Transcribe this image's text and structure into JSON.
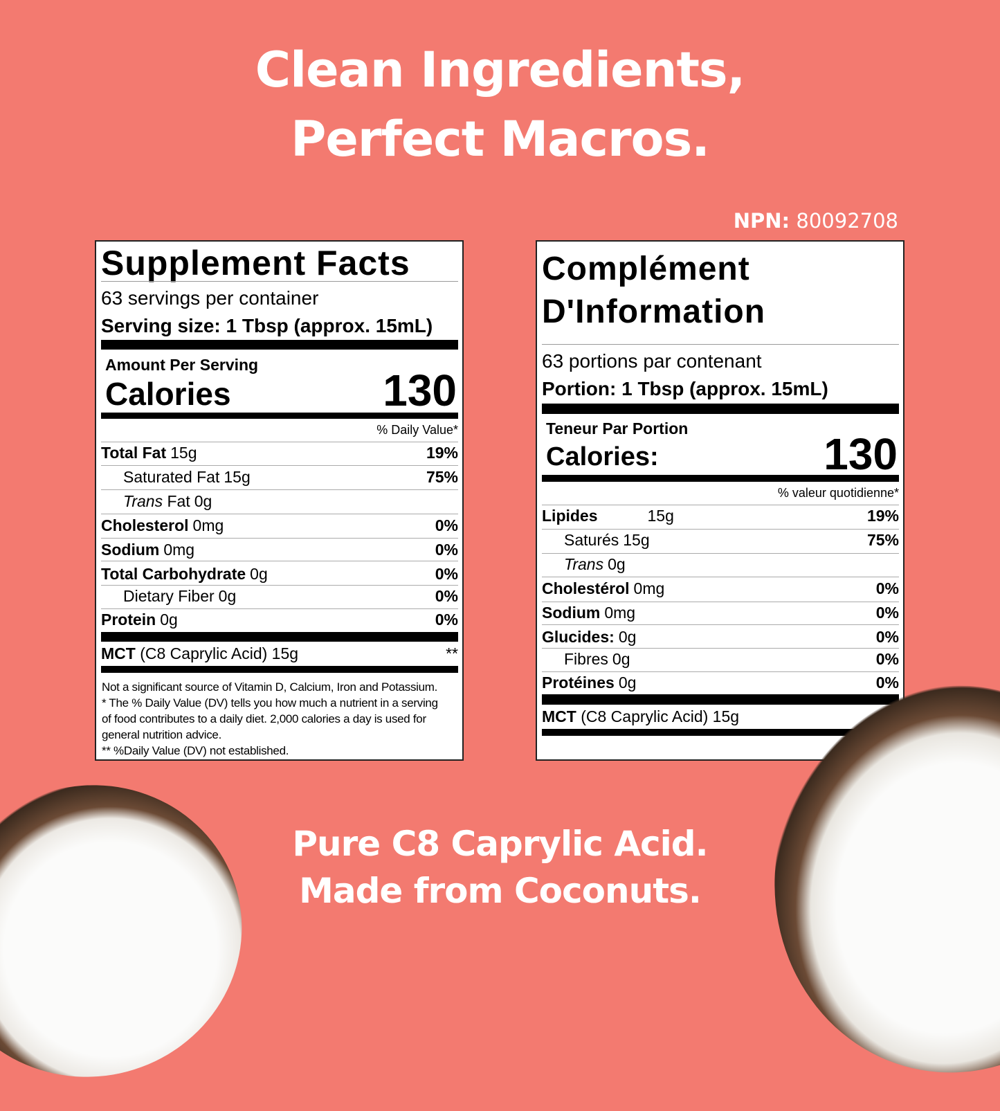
{
  "headline": {
    "line1": "Clean Ingredients,",
    "line2": "Perfect Macros."
  },
  "npn": {
    "label": "NPN:",
    "value": "80092708"
  },
  "english": {
    "title": "Supplement Facts",
    "servings": "63 servings per container",
    "serving_size": "Serving size: 1 Tbsp (approx. 15mL)",
    "amount_per_serving": "Amount Per Serving",
    "calories_label": "Calories",
    "calories_value": "130",
    "dv_header": "% Daily Value*",
    "rows": [
      {
        "name": "Total Fat",
        "amount": "15g",
        "pct": "19%",
        "bold": true,
        "indent": false
      },
      {
        "name": "Saturated Fat",
        "amount": "15g",
        "pct": "75%",
        "bold": false,
        "indent": true
      },
      {
        "name": "Trans",
        "name2": " Fat",
        "amount": "0g",
        "pct": "",
        "bold": false,
        "indent": true,
        "italic": true
      },
      {
        "name": "Cholesterol",
        "amount": "0mg",
        "pct": "0%",
        "bold": true,
        "indent": false
      },
      {
        "name": "Sodium",
        "amount": "0mg",
        "pct": "0%",
        "bold": true,
        "indent": false
      },
      {
        "name": "Total Carbohydrate",
        "amount": "0g",
        "pct": "0%",
        "bold": true,
        "indent": false
      },
      {
        "name": "Dietary Fiber",
        "amount": "0g",
        "pct": "0%",
        "bold": false,
        "indent": true
      },
      {
        "name": "Protein",
        "amount": "0g",
        "pct": "0%",
        "bold": true,
        "indent": false
      }
    ],
    "mct": {
      "name": "MCT",
      "detail": "(C8 Caprylic Acid) 15g",
      "pct": "**"
    },
    "footnotes": [
      "Not a significant source of Vitamin D, Calcium, Iron and Potassium.",
      "* The % Daily Value (DV) tells you how much a nutrient in a serving",
      "of food contributes to a daily diet. 2,000 calories a day is used for",
      "general nutrition advice.",
      "** %Daily Value (DV) not established."
    ]
  },
  "french": {
    "title_line1": "Complément",
    "title_line2": "D'Information",
    "servings": "63 portions par contenant",
    "serving_size": "Portion: 1 Tbsp (approx. 15mL)",
    "amount_per_serving": "Teneur Par Portion",
    "calories_label": "Calories:",
    "calories_value": "130",
    "dv_header": "%  valeur quotidienne*",
    "rows": [
      {
        "name": "Lipides",
        "amount": "15g",
        "pct": "19%",
        "bold": true,
        "indent": false,
        "gap": true
      },
      {
        "name": "Saturés",
        "amount": "15g",
        "pct": "75%",
        "bold": false,
        "indent": true
      },
      {
        "name": "Trans",
        "amount": "0g",
        "pct": "",
        "bold": false,
        "indent": true,
        "italic": true
      },
      {
        "name": "Cholestérol",
        "amount": "0mg",
        "pct": "0%",
        "bold": true,
        "indent": false
      },
      {
        "name": "Sodium",
        "amount": "0mg",
        "pct": "0%",
        "bold": true,
        "indent": false
      },
      {
        "name": "Glucides:",
        "amount": "0g",
        "pct": "0%",
        "bold": true,
        "indent": false
      },
      {
        "name": "Fibres",
        "amount": "0g",
        "pct": "0%",
        "bold": false,
        "indent": true
      },
      {
        "name": "Protéines",
        "amount": "0g",
        "pct": "0%",
        "bold": true,
        "indent": false
      }
    ],
    "mct": {
      "name": "MCT",
      "detail": "(C8 Caprylic Acid) 15g",
      "pct": "**"
    }
  },
  "tagline": {
    "line1": "Pure C8 Caprylic Acid.",
    "line2": "Made from Coconuts."
  },
  "colors": {
    "background": "#f37a70",
    "text": "#ffffff",
    "panel": "#ffffff"
  }
}
